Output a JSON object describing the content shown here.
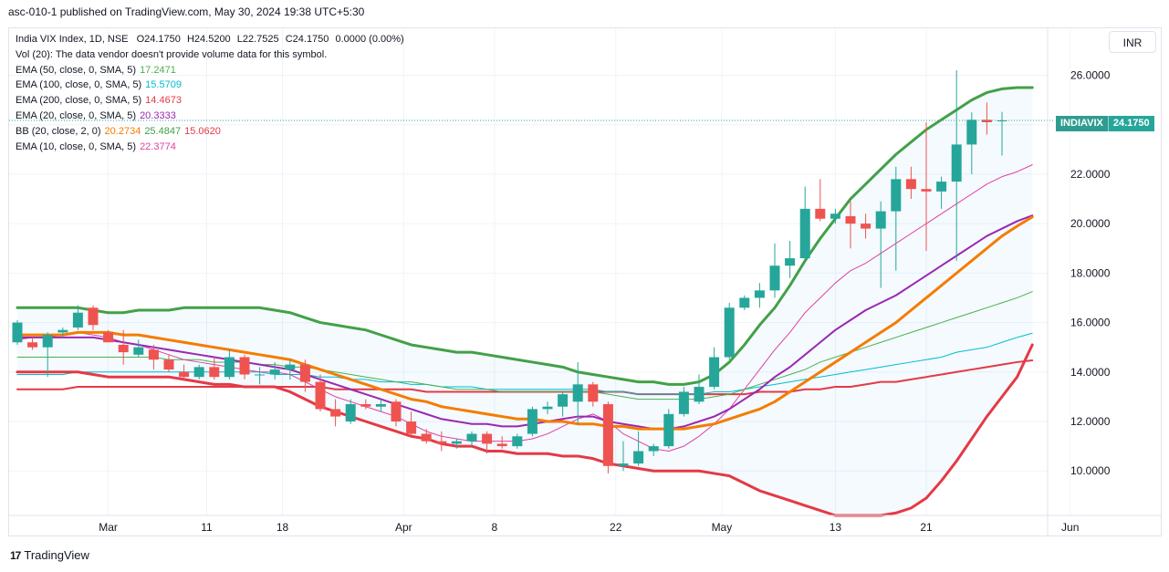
{
  "header": {
    "published": "asc-010-1 published on TradingView.com, May 30, 2024 19:38 UTC+5:30"
  },
  "legend": {
    "symbol": "India VIX Index, 1D, NSE",
    "ohlc": {
      "o": "O24.1750",
      "h": "H24.5200",
      "l": "L22.7525",
      "c": "C24.1750",
      "chg": "0.0000 (0.00%)"
    },
    "vol": "Vol (20): The data vendor doesn't provide volume data for this symbol.",
    "indicators": [
      {
        "name": "EMA (50, close, 0, SMA, 5)",
        "values": [
          "17.2471"
        ],
        "colors": [
          "#4caf50"
        ]
      },
      {
        "name": "EMA (100, close, 0, SMA, 5)",
        "values": [
          "15.5709"
        ],
        "colors": [
          "#00bcd4"
        ]
      },
      {
        "name": "EMA (200, close, 0, SMA, 5)",
        "values": [
          "14.4673"
        ],
        "colors": [
          "#e53945"
        ]
      },
      {
        "name": "EMA (20, close, 0, SMA, 5)",
        "values": [
          "20.3333"
        ],
        "colors": [
          "#9c27b0"
        ]
      },
      {
        "name": "BB (20, close, 2, 0)",
        "values": [
          "20.2734",
          "25.4847",
          "15.0620"
        ],
        "colors": [
          "#f57c00",
          "#43a047",
          "#e53945"
        ]
      },
      {
        "name": "EMA (10, close, 0, SMA, 5)",
        "values": [
          "22.3774"
        ],
        "colors": [
          "#e040a0"
        ]
      }
    ]
  },
  "currency_button": "INR",
  "last_price_label": {
    "symbol": "INDIAVIX",
    "value": "24.1750"
  },
  "footer": {
    "logo_text": "17",
    "brand": "TradingView"
  },
  "colors": {
    "up": "#26a69a",
    "down": "#ef5350",
    "grid": "#f0f3fa",
    "axis_text": "#131722"
  },
  "chart_data": {
    "type": "candlestick",
    "title": "India VIX Index, 1D, NSE",
    "x_ticks": [
      "Mar",
      "11",
      "18",
      "Apr",
      "8",
      "22",
      "May",
      "13",
      "21",
      "Jun"
    ],
    "y_ticks": [
      "26.0000",
      "24.0000",
      "22.0000",
      "20.0000",
      "18.0000",
      "16.0000",
      "14.0000",
      "12.0000",
      "10.0000"
    ],
    "ylim": [
      8.2,
      27.9
    ],
    "candles": [
      {
        "d": "Feb 22",
        "o": 15.2,
        "h": 16.1,
        "l": 15.1,
        "c": 16.0
      },
      {
        "d": "Feb 23",
        "o": 15.2,
        "h": 15.4,
        "l": 14.9,
        "c": 15.0
      },
      {
        "d": "Feb 26",
        "o": 15.0,
        "h": 15.6,
        "l": 13.8,
        "c": 15.5
      },
      {
        "d": "Feb 27",
        "o": 15.6,
        "h": 15.8,
        "l": 15.4,
        "c": 15.7
      },
      {
        "d": "Feb 28",
        "o": 15.8,
        "h": 16.7,
        "l": 15.7,
        "c": 16.4
      },
      {
        "d": "Feb 29",
        "o": 16.6,
        "h": 16.7,
        "l": 15.7,
        "c": 15.9
      },
      {
        "d": "Mar 01",
        "o": 15.6,
        "h": 15.7,
        "l": 15.2,
        "c": 15.2
      },
      {
        "d": "Mar 04",
        "o": 15.1,
        "h": 15.7,
        "l": 14.3,
        "c": 14.8
      },
      {
        "d": "Mar 05",
        "o": 14.7,
        "h": 15.3,
        "l": 14.6,
        "c": 15.0
      },
      {
        "d": "Mar 06",
        "o": 14.9,
        "h": 15.1,
        "l": 14.1,
        "c": 14.5
      },
      {
        "d": "Mar 07",
        "o": 14.5,
        "h": 14.7,
        "l": 14.0,
        "c": 14.1
      },
      {
        "d": "Mar 11",
        "o": 14.0,
        "h": 14.3,
        "l": 13.7,
        "c": 13.8
      },
      {
        "d": "Mar 12",
        "o": 13.8,
        "h": 14.3,
        "l": 13.7,
        "c": 14.2
      },
      {
        "d": "Mar 13",
        "o": 14.2,
        "h": 14.6,
        "l": 13.7,
        "c": 13.8
      },
      {
        "d": "Mar 14",
        "o": 13.8,
        "h": 14.9,
        "l": 13.7,
        "c": 14.6
      },
      {
        "d": "Mar 15",
        "o": 14.6,
        "h": 14.7,
        "l": 13.7,
        "c": 13.9
      },
      {
        "d": "Mar 18",
        "o": 13.9,
        "h": 14.2,
        "l": 13.5,
        "c": 13.9
      },
      {
        "d": "Mar 19",
        "o": 13.9,
        "h": 14.4,
        "l": 13.7,
        "c": 14.1
      },
      {
        "d": "Mar 20",
        "o": 14.1,
        "h": 14.5,
        "l": 13.7,
        "c": 14.3
      },
      {
        "d": "Mar 21",
        "o": 14.3,
        "h": 14.5,
        "l": 13.2,
        "c": 13.6
      },
      {
        "d": "Mar 22",
        "o": 13.6,
        "h": 13.9,
        "l": 12.4,
        "c": 12.5
      },
      {
        "d": "Mar 26",
        "o": 12.5,
        "h": 12.9,
        "l": 11.8,
        "c": 12.2
      },
      {
        "d": "Mar 27",
        "o": 12.0,
        "h": 12.9,
        "l": 11.9,
        "c": 12.7
      },
      {
        "d": "Mar 28",
        "o": 12.7,
        "h": 12.9,
        "l": 12.5,
        "c": 12.6
      },
      {
        "d": "Apr 01",
        "o": 12.6,
        "h": 12.9,
        "l": 12.4,
        "c": 12.7
      },
      {
        "d": "Apr 02",
        "o": 12.8,
        "h": 12.9,
        "l": 11.8,
        "c": 12.0
      },
      {
        "d": "Apr 03",
        "o": 12.0,
        "h": 12.4,
        "l": 11.4,
        "c": 11.5
      },
      {
        "d": "Apr 04",
        "o": 11.5,
        "h": 11.7,
        "l": 11.1,
        "c": 11.2
      },
      {
        "d": "Apr 05",
        "o": 11.2,
        "h": 11.6,
        "l": 10.8,
        "c": 11.1
      },
      {
        "d": "Apr 08",
        "o": 11.1,
        "h": 11.3,
        "l": 10.9,
        "c": 11.2
      },
      {
        "d": "Apr 09",
        "o": 11.2,
        "h": 11.6,
        "l": 11.0,
        "c": 11.5
      },
      {
        "d": "Apr 10",
        "o": 11.5,
        "h": 11.6,
        "l": 10.7,
        "c": 11.1
      },
      {
        "d": "Apr 12",
        "o": 11.1,
        "h": 11.4,
        "l": 10.9,
        "c": 11.0
      },
      {
        "d": "Apr 15",
        "o": 11.0,
        "h": 11.5,
        "l": 10.9,
        "c": 11.4
      },
      {
        "d": "Apr 16",
        "o": 11.5,
        "h": 12.6,
        "l": 11.4,
        "c": 12.5
      },
      {
        "d": "Apr 18",
        "o": 12.5,
        "h": 12.8,
        "l": 12.3,
        "c": 12.6
      },
      {
        "d": "Apr 19",
        "o": 12.6,
        "h": 13.2,
        "l": 12.2,
        "c": 13.1
      },
      {
        "d": "Apr 22",
        "o": 12.8,
        "h": 14.4,
        "l": 11.9,
        "c": 13.5
      },
      {
        "d": "Apr 23",
        "o": 13.5,
        "h": 13.6,
        "l": 12.6,
        "c": 12.8
      },
      {
        "d": "Apr 24",
        "o": 12.7,
        "h": 12.8,
        "l": 9.9,
        "c": 10.2
      },
      {
        "d": "Apr 25",
        "o": 10.2,
        "h": 11.2,
        "l": 10.0,
        "c": 10.3
      },
      {
        "d": "Apr 26",
        "o": 10.3,
        "h": 11.6,
        "l": 10.2,
        "c": 10.8
      },
      {
        "d": "Apr 29",
        "o": 10.8,
        "h": 11.1,
        "l": 10.6,
        "c": 11.0
      },
      {
        "d": "Apr 30",
        "o": 11.0,
        "h": 12.5,
        "l": 10.9,
        "c": 12.3
      },
      {
        "d": "May 02",
        "o": 12.3,
        "h": 13.4,
        "l": 12.2,
        "c": 13.2
      },
      {
        "d": "May 03",
        "o": 12.8,
        "h": 13.9,
        "l": 12.7,
        "c": 13.4
      },
      {
        "d": "May 06",
        "o": 13.4,
        "h": 15.0,
        "l": 13.3,
        "c": 14.6
      },
      {
        "d": "May 07",
        "o": 14.6,
        "h": 16.8,
        "l": 14.5,
        "c": 16.6
      },
      {
        "d": "May 08",
        "o": 16.6,
        "h": 17.1,
        "l": 16.5,
        "c": 17.0
      },
      {
        "d": "May 09",
        "o": 17.0,
        "h": 17.6,
        "l": 16.6,
        "c": 17.3
      },
      {
        "d": "May 10",
        "o": 17.3,
        "h": 19.2,
        "l": 17.0,
        "c": 18.3
      },
      {
        "d": "May 13",
        "o": 18.3,
        "h": 19.3,
        "l": 17.8,
        "c": 18.6
      },
      {
        "d": "May 14",
        "o": 18.6,
        "h": 21.5,
        "l": 18.5,
        "c": 20.6
      },
      {
        "d": "May 15",
        "o": 20.6,
        "h": 21.8,
        "l": 20.1,
        "c": 20.2
      },
      {
        "d": "May 16",
        "o": 20.2,
        "h": 20.6,
        "l": 20.0,
        "c": 20.4
      },
      {
        "d": "May 17",
        "o": 20.3,
        "h": 20.9,
        "l": 19.0,
        "c": 20.0
      },
      {
        "d": "May 18",
        "o": 20.0,
        "h": 20.4,
        "l": 19.4,
        "c": 19.8
      },
      {
        "d": "May 21",
        "o": 19.8,
        "h": 20.9,
        "l": 17.4,
        "c": 20.5
      },
      {
        "d": "May 22",
        "o": 20.5,
        "h": 22.3,
        "l": 18.1,
        "c": 21.8
      },
      {
        "d": "May 23",
        "o": 21.8,
        "h": 22.3,
        "l": 21.0,
        "c": 21.4
      },
      {
        "d": "May 24",
        "o": 21.4,
        "h": 24.1,
        "l": 18.9,
        "c": 21.3
      },
      {
        "d": "May 27",
        "o": 21.3,
        "h": 21.9,
        "l": 20.6,
        "c": 21.7
      },
      {
        "d": "May 28",
        "o": 21.7,
        "h": 26.2,
        "l": 18.5,
        "c": 23.2
      },
      {
        "d": "May 29",
        "o": 23.2,
        "h": 24.5,
        "l": 22.0,
        "c": 24.2
      },
      {
        "d": "May 30",
        "o": 24.2,
        "h": 24.9,
        "l": 23.6,
        "c": 24.1
      },
      {
        "d": "May 31",
        "o": 24.175,
        "h": 24.52,
        "l": 22.7525,
        "c": 24.175
      }
    ],
    "series": [
      {
        "name": "BB upper",
        "color": "#43a047",
        "width": 3,
        "values": [
          16.6,
          16.6,
          16.6,
          16.6,
          16.6,
          16.5,
          16.4,
          16.4,
          16.5,
          16.5,
          16.5,
          16.6,
          16.6,
          16.6,
          16.6,
          16.6,
          16.6,
          16.5,
          16.4,
          16.2,
          16.0,
          15.9,
          15.8,
          15.7,
          15.5,
          15.3,
          15.1,
          15.0,
          14.9,
          14.8,
          14.8,
          14.7,
          14.6,
          14.5,
          14.4,
          14.3,
          14.2,
          14.0,
          13.9,
          13.8,
          13.7,
          13.6,
          13.6,
          13.5,
          13.5,
          13.6,
          13.9,
          14.4,
          15.1,
          15.9,
          16.6,
          17.5,
          18.5,
          19.4,
          20.2,
          21.0,
          21.6,
          22.2,
          22.8,
          23.3,
          23.8,
          24.2,
          24.6,
          25.0,
          25.3,
          25.45,
          25.5,
          25.5
        ]
      },
      {
        "name": "BB lower",
        "color": "#e53945",
        "width": 3,
        "values": [
          14.0,
          14.0,
          14.0,
          14.0,
          14.0,
          13.9,
          13.8,
          13.8,
          13.8,
          13.8,
          13.8,
          13.7,
          13.6,
          13.5,
          13.5,
          13.4,
          13.4,
          13.4,
          13.2,
          12.9,
          12.6,
          12.4,
          12.2,
          12.0,
          11.8,
          11.6,
          11.4,
          11.3,
          11.1,
          11.0,
          11.0,
          10.8,
          10.8,
          10.7,
          10.7,
          10.7,
          10.6,
          10.6,
          10.5,
          10.3,
          10.2,
          10.1,
          10.0,
          10.0,
          10.0,
          10.0,
          9.9,
          9.8,
          9.5,
          9.2,
          9.0,
          8.8,
          8.6,
          8.4,
          8.2,
          8.2,
          8.2,
          8.2,
          8.3,
          8.5,
          8.9,
          9.6,
          10.4,
          11.3,
          12.2,
          13.0,
          13.8,
          15.1
        ]
      },
      {
        "name": "BB basis",
        "color": "#f57c00",
        "width": 3,
        "values": [
          15.5,
          15.5,
          15.5,
          15.5,
          15.6,
          15.6,
          15.6,
          15.5,
          15.5,
          15.4,
          15.3,
          15.2,
          15.1,
          15.0,
          14.9,
          14.8,
          14.7,
          14.6,
          14.5,
          14.3,
          14.1,
          13.9,
          13.7,
          13.5,
          13.3,
          13.1,
          12.9,
          12.8,
          12.6,
          12.5,
          12.4,
          12.3,
          12.2,
          12.1,
          12.1,
          12.0,
          12.0,
          11.9,
          11.9,
          11.8,
          11.8,
          11.7,
          11.7,
          11.7,
          11.7,
          11.8,
          11.9,
          12.1,
          12.3,
          12.5,
          12.8,
          13.2,
          13.6,
          14.0,
          14.4,
          14.8,
          15.2,
          15.6,
          16.0,
          16.5,
          17.0,
          17.5,
          18.0,
          18.5,
          19.0,
          19.5,
          19.9,
          20.27
        ]
      },
      {
        "name": "EMA 20",
        "color": "#9c27b0",
        "width": 2,
        "values": [
          15.4,
          15.4,
          15.4,
          15.4,
          15.4,
          15.4,
          15.3,
          15.2,
          15.1,
          15.0,
          14.9,
          14.8,
          14.7,
          14.6,
          14.5,
          14.4,
          14.3,
          14.2,
          14.1,
          13.9,
          13.7,
          13.5,
          13.3,
          13.1,
          12.9,
          12.7,
          12.5,
          12.3,
          12.1,
          12.0,
          11.9,
          11.9,
          11.8,
          11.8,
          11.9,
          12.0,
          12.1,
          12.2,
          12.2,
          12.0,
          11.9,
          11.8,
          11.7,
          11.7,
          11.8,
          12.0,
          12.2,
          12.5,
          12.9,
          13.3,
          13.8,
          14.2,
          14.7,
          15.2,
          15.7,
          16.1,
          16.5,
          16.8,
          17.1,
          17.5,
          17.9,
          18.3,
          18.7,
          19.1,
          19.5,
          19.8,
          20.1,
          20.33
        ]
      },
      {
        "name": "EMA 10",
        "color": "#e040a0",
        "width": 1,
        "values": [
          15.3,
          15.4,
          15.4,
          15.5,
          15.6,
          15.5,
          15.4,
          15.2,
          15.1,
          14.9,
          14.7,
          14.5,
          14.4,
          14.3,
          14.2,
          14.1,
          14.0,
          14.0,
          13.9,
          13.6,
          13.3,
          13.0,
          12.8,
          12.6,
          12.4,
          12.2,
          11.9,
          11.6,
          11.4,
          11.3,
          11.2,
          11.2,
          11.2,
          11.2,
          11.3,
          11.5,
          11.8,
          12.1,
          12.3,
          12.0,
          11.5,
          11.2,
          10.9,
          10.8,
          11.0,
          11.4,
          11.9,
          12.5,
          13.3,
          14.1,
          14.9,
          15.6,
          16.4,
          17.0,
          17.6,
          18.1,
          18.4,
          18.8,
          19.2,
          19.6,
          20.0,
          20.4,
          20.8,
          21.2,
          21.6,
          21.9,
          22.1,
          22.38
        ]
      },
      {
        "name": "EMA 50",
        "color": "#4caf50",
        "width": 1,
        "values": [
          14.6,
          14.6,
          14.6,
          14.6,
          14.6,
          14.6,
          14.6,
          14.6,
          14.6,
          14.6,
          14.5,
          14.5,
          14.5,
          14.4,
          14.4,
          14.4,
          14.3,
          14.3,
          14.2,
          14.2,
          14.1,
          14.0,
          13.9,
          13.8,
          13.7,
          13.6,
          13.6,
          13.5,
          13.4,
          13.3,
          13.3,
          13.3,
          13.2,
          13.2,
          13.2,
          13.2,
          13.2,
          13.2,
          13.2,
          13.1,
          13.0,
          12.9,
          12.9,
          12.9,
          12.9,
          12.9,
          13.0,
          13.1,
          13.3,
          13.5,
          13.7,
          13.9,
          14.1,
          14.4,
          14.6,
          14.8,
          15.0,
          15.2,
          15.4,
          15.6,
          15.8,
          16.0,
          16.2,
          16.4,
          16.6,
          16.8,
          17.0,
          17.25
        ]
      },
      {
        "name": "EMA 100",
        "color": "#00bcd4",
        "width": 1,
        "values": [
          13.9,
          13.9,
          13.9,
          13.9,
          14.0,
          14.0,
          14.0,
          14.0,
          14.0,
          14.0,
          14.0,
          14.0,
          14.0,
          14.0,
          14.0,
          14.0,
          14.0,
          13.9,
          13.9,
          13.9,
          13.8,
          13.8,
          13.7,
          13.7,
          13.6,
          13.6,
          13.5,
          13.5,
          13.4,
          13.4,
          13.4,
          13.3,
          13.3,
          13.3,
          13.3,
          13.3,
          13.3,
          13.3,
          13.3,
          13.2,
          13.2,
          13.1,
          13.1,
          13.1,
          13.1,
          13.1,
          13.2,
          13.2,
          13.3,
          13.4,
          13.5,
          13.6,
          13.7,
          13.8,
          13.9,
          14.0,
          14.1,
          14.2,
          14.3,
          14.4,
          14.5,
          14.6,
          14.8,
          14.9,
          15.0,
          15.2,
          15.4,
          15.57
        ]
      },
      {
        "name": "EMA 200",
        "color": "#e53945",
        "width": 2,
        "values": [
          13.3,
          13.3,
          13.3,
          13.3,
          13.4,
          13.4,
          13.4,
          13.4,
          13.4,
          13.4,
          13.4,
          13.4,
          13.4,
          13.4,
          13.4,
          13.4,
          13.4,
          13.4,
          13.4,
          13.4,
          13.4,
          13.3,
          13.3,
          13.3,
          13.3,
          13.3,
          13.3,
          13.2,
          13.2,
          13.2,
          13.2,
          13.2,
          13.2,
          13.2,
          13.2,
          13.2,
          13.2,
          13.2,
          13.2,
          13.2,
          13.2,
          13.1,
          13.1,
          13.1,
          13.1,
          13.1,
          13.1,
          13.1,
          13.1,
          13.2,
          13.2,
          13.2,
          13.3,
          13.3,
          13.4,
          13.4,
          13.5,
          13.6,
          13.6,
          13.7,
          13.8,
          13.9,
          14.0,
          14.1,
          14.2,
          14.3,
          14.4,
          14.47
        ]
      }
    ]
  }
}
